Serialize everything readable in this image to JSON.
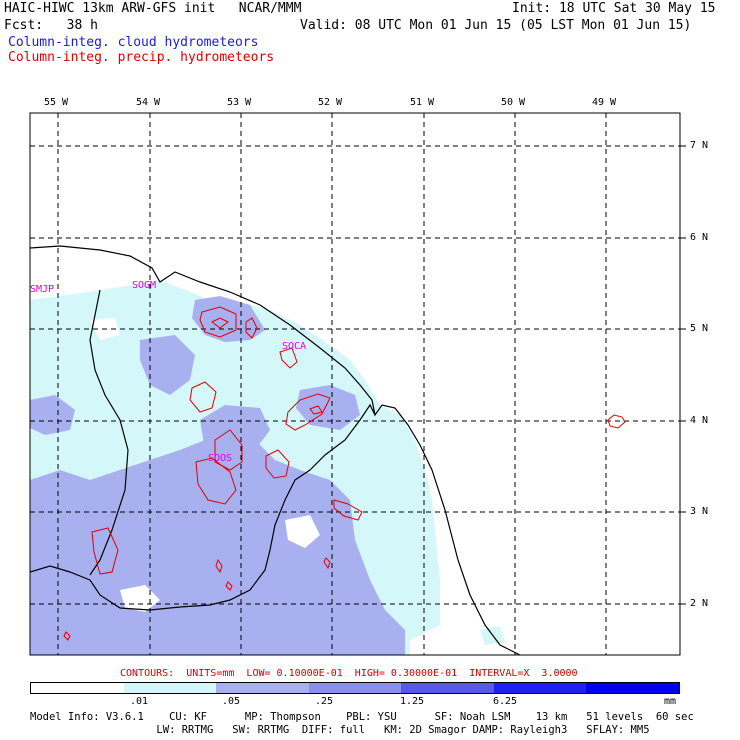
{
  "header": {
    "model_line": "HAIC-HIWC 13km ARW-GFS init   NCAR/MMM",
    "init_line": "Init: 18 UTC Sat 30 May 15",
    "fcst_line": "Fcst:   38 h",
    "valid_line": "Valid: 08 UTC Mon 01 Jun 15 (05 LST Mon 01 Jun 15)",
    "field_cloud": "Column-integ. cloud hydrometeors",
    "field_precip": "Column-integ. precip. hydrometeors"
  },
  "colors": {
    "cloud_text": "#1a1ae6",
    "precip_text": "#e00000",
    "contour": "#e00000",
    "station": "#e000e0",
    "level1": "#ffffff",
    "level2": "#d4f7fa",
    "level3": "#a8b0f0",
    "level4": "#8a90ee",
    "level5": "#5a5ae8",
    "level6": "#2020f0",
    "level7": "#0000ee"
  },
  "map": {
    "longitude_labels": [
      "55 W",
      "54 W",
      "53 W",
      "52 W",
      "51 W",
      "50 W",
      "49 W"
    ],
    "latitude_labels": [
      "7 N",
      "6 N",
      "5 N",
      "4 N",
      "3 N",
      "2 N"
    ],
    "stations": [
      "SMJP",
      "SOGM",
      "SOCA",
      "SOOS"
    ]
  },
  "contours_note": "CONTOURS:  UNITS=mm  LOW= 0.10000E-01  HIGH= 0.30000E-01  INTERVAL=X  3.0000",
  "colorbar": {
    "labels": [
      ".01",
      ".05",
      ".25",
      "1.25",
      "6.25"
    ],
    "unit": "mm"
  },
  "model_info": {
    "line1": "Model Info: V3.6.1    CU: KF      MP: Thompson    PBL: YSU      SF: Noah LSM    13 km   51 levels  60 sec",
    "line2": "                    LW: RRTMG   SW: RRTMG  DIFF: full   KM: 2D Smagor DAMP: Rayleigh3   SFLAY: MM5"
  }
}
